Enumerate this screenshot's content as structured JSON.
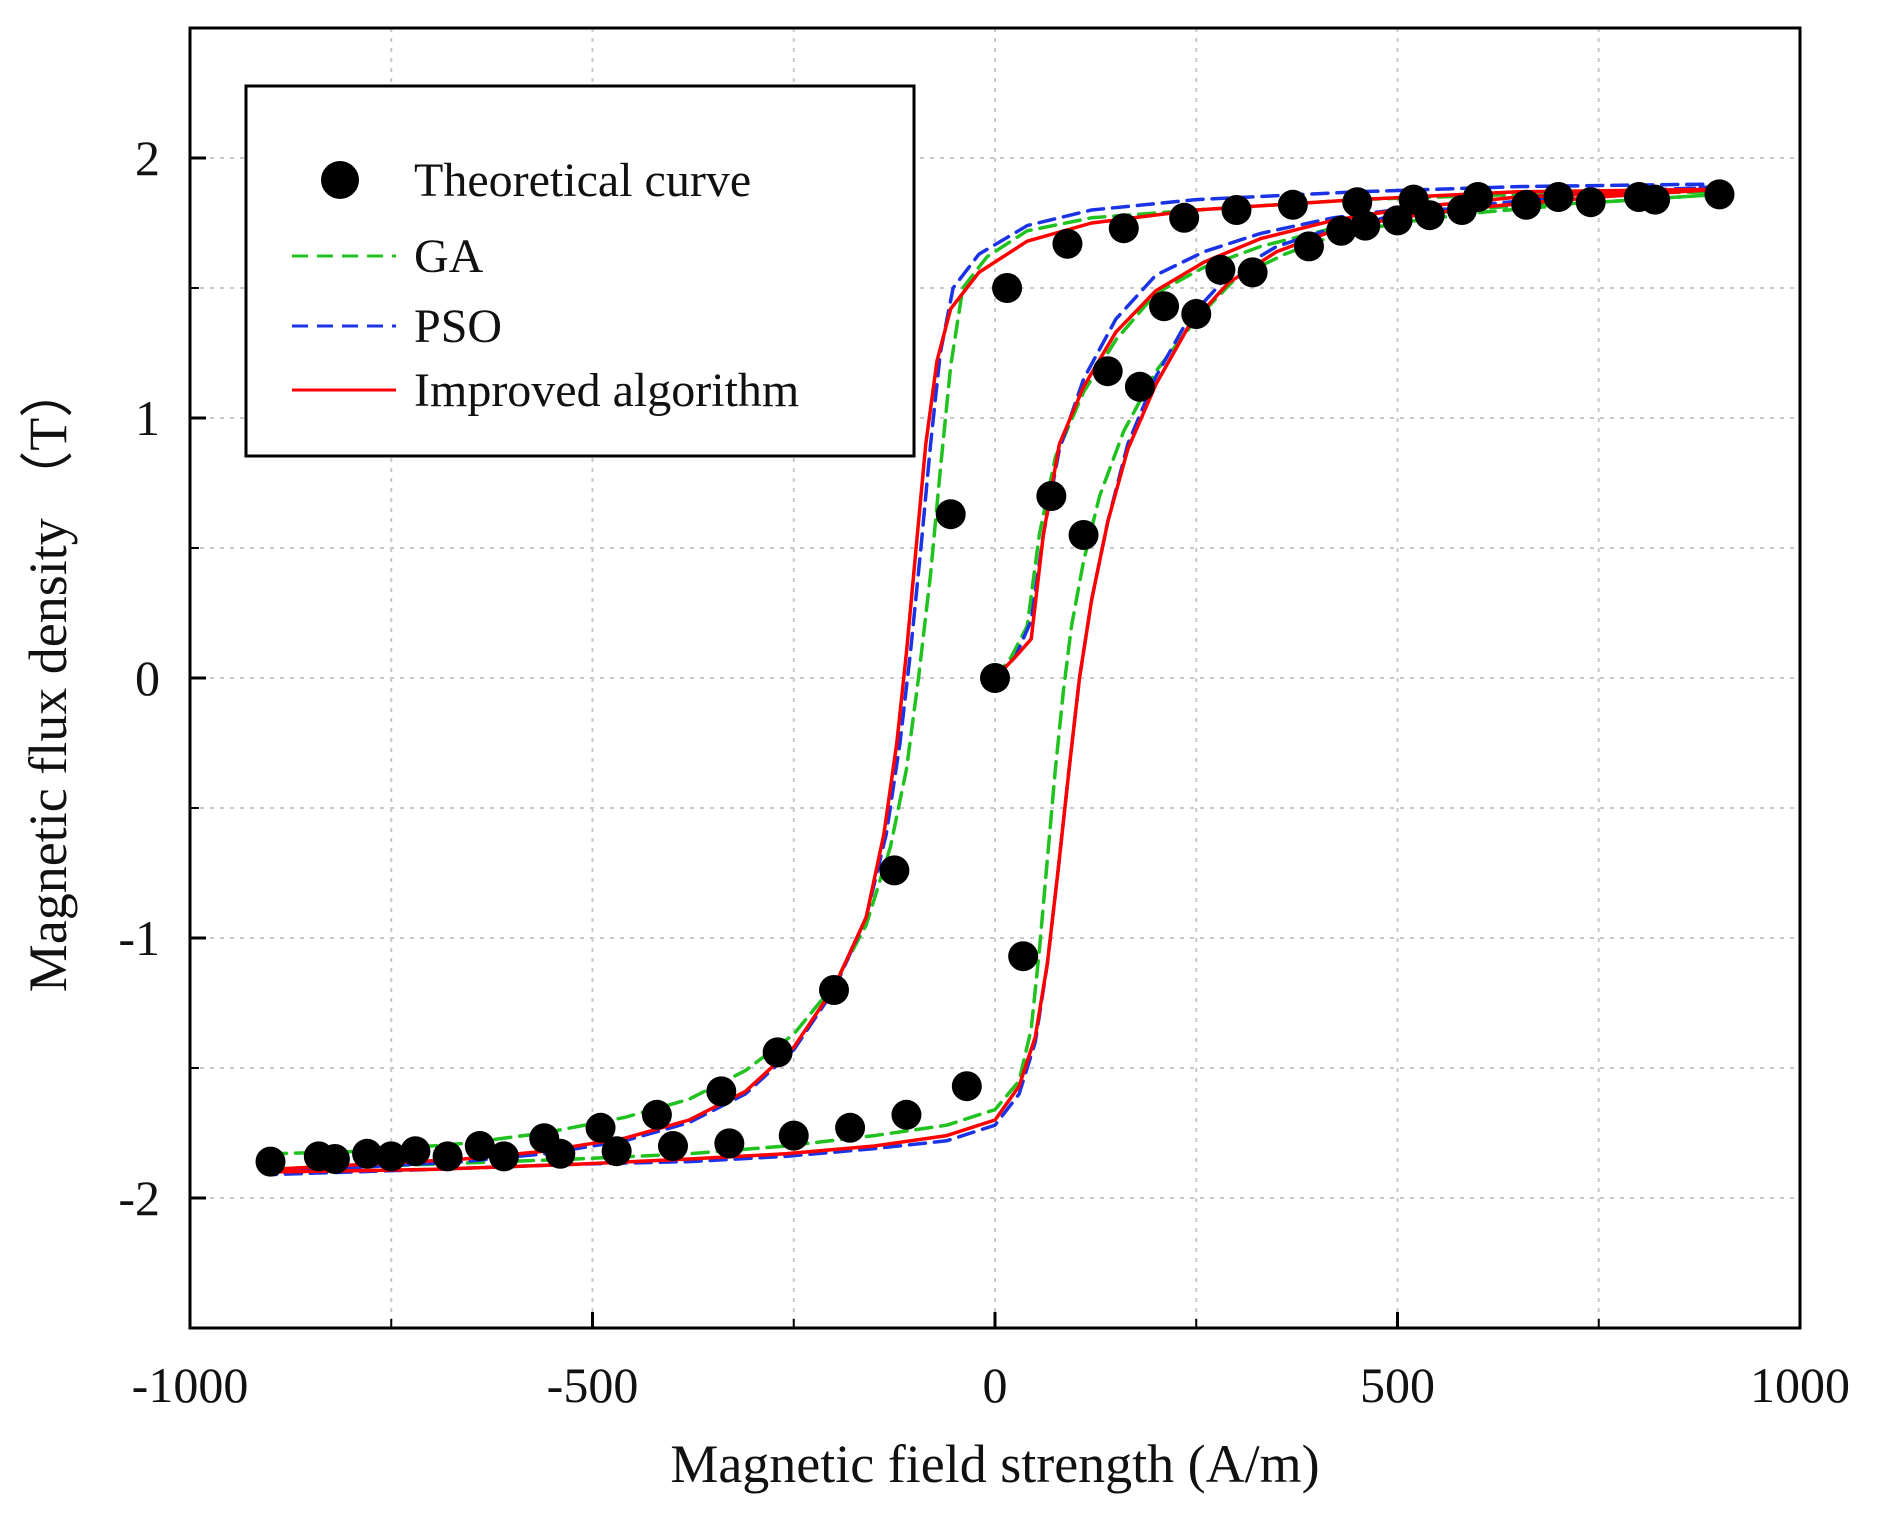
{
  "chart_data": {
    "type": "scatter",
    "title": "",
    "xlabel": "Magnetic field strength (A/m)",
    "ylabel": "Magnetic flux density （T）",
    "xlim": [
      -1000,
      1000
    ],
    "ylim": [
      -2.5,
      2.5
    ],
    "x_ticks": [
      -1000,
      -500,
      0,
      500,
      1000
    ],
    "x_tick_labels": [
      "-1000",
      "-500",
      "0",
      "500",
      "1000"
    ],
    "x_minor_ticks": [
      -750,
      -250,
      250,
      750
    ],
    "y_ticks": [
      -2,
      -1,
      0,
      1,
      2
    ],
    "y_tick_labels": [
      "-2",
      "-1",
      "0",
      "1",
      "2"
    ],
    "y_minor_ticks": [
      -1.5,
      -0.5,
      0.5,
      1.5
    ],
    "grid": true,
    "legend_position": "top-left",
    "colors": {
      "theoretical": "#000000",
      "ga": "#1fc21f",
      "pso": "#1a33e6",
      "improved": "#ff0000",
      "grid": "#c8c8c8"
    },
    "legend": [
      "Theoretical curve",
      "GA",
      "PSO",
      "Improved algorithm"
    ],
    "series": [
      {
        "name": "Theoretical curve",
        "style": "markers",
        "points": [
          [
            0,
            0
          ],
          [
            70,
            0.7
          ],
          [
            140,
            1.18
          ],
          [
            210,
            1.43
          ],
          [
            280,
            1.57
          ],
          [
            300,
            1.8
          ],
          [
            370,
            1.82
          ],
          [
            450,
            1.83
          ],
          [
            520,
            1.84
          ],
          [
            600,
            1.85
          ],
          [
            700,
            1.85
          ],
          [
            800,
            1.85
          ],
          [
            900,
            1.86
          ],
          [
            820,
            1.84
          ],
          [
            740,
            1.83
          ],
          [
            660,
            1.82
          ],
          [
            580,
            1.8
          ],
          [
            540,
            1.78
          ],
          [
            500,
            1.76
          ],
          [
            460,
            1.74
          ],
          [
            430,
            1.72
          ],
          [
            390,
            1.66
          ],
          [
            320,
            1.56
          ],
          [
            250,
            1.4
          ],
          [
            180,
            1.12
          ],
          [
            110,
            0.55
          ],
          [
            35,
            -1.07
          ],
          [
            -35,
            -1.57
          ],
          [
            -110,
            -1.68
          ],
          [
            -180,
            -1.73
          ],
          [
            -250,
            -1.76
          ],
          [
            -330,
            -1.79
          ],
          [
            -400,
            -1.8
          ],
          [
            -470,
            -1.82
          ],
          [
            -540,
            -1.83
          ],
          [
            -610,
            -1.84
          ],
          [
            -680,
            -1.84
          ],
          [
            -750,
            -1.84
          ],
          [
            -820,
            -1.85
          ],
          [
            -900,
            -1.86
          ],
          [
            -840,
            -1.84
          ],
          [
            -780,
            -1.83
          ],
          [
            -720,
            -1.82
          ],
          [
            -640,
            -1.8
          ],
          [
            -560,
            -1.77
          ],
          [
            -490,
            -1.73
          ],
          [
            -420,
            -1.68
          ],
          [
            -340,
            -1.59
          ],
          [
            -270,
            -1.44
          ],
          [
            -200,
            -1.2
          ],
          [
            -125,
            -0.74
          ],
          [
            -55,
            0.63
          ],
          [
            15,
            1.5
          ],
          [
            90,
            1.67
          ],
          [
            160,
            1.73
          ],
          [
            235,
            1.77
          ]
        ]
      },
      {
        "name": "GA",
        "style": "dashed",
        "segments": [
          [
            [
              0,
              0
            ],
            [
              20,
              0.08
            ],
            [
              40,
              0.2
            ],
            [
              55,
              0.55
            ],
            [
              75,
              0.85
            ],
            [
              110,
              1.1
            ],
            [
              150,
              1.3
            ],
            [
              200,
              1.48
            ],
            [
              260,
              1.58
            ],
            [
              330,
              1.66
            ],
            [
              420,
              1.73
            ],
            [
              520,
              1.78
            ],
            [
              620,
              1.81
            ],
            [
              750,
              1.83
            ],
            [
              900,
              1.86
            ]
          ],
          [
            [
              900,
              1.86
            ],
            [
              750,
              1.83
            ],
            [
              600,
              1.79
            ],
            [
              500,
              1.75
            ],
            [
              420,
              1.7
            ],
            [
              360,
              1.63
            ],
            [
              300,
              1.54
            ],
            [
              250,
              1.38
            ],
            [
              200,
              1.18
            ],
            [
              160,
              0.95
            ],
            [
              130,
              0.7
            ],
            [
              110,
              0.45
            ],
            [
              95,
              0.2
            ],
            [
              85,
              -0.05
            ],
            [
              75,
              -0.35
            ],
            [
              65,
              -0.7
            ],
            [
              55,
              -1.05
            ],
            [
              45,
              -1.35
            ],
            [
              30,
              -1.55
            ],
            [
              0,
              -1.66
            ],
            [
              -60,
              -1.72
            ],
            [
              -150,
              -1.76
            ],
            [
              -260,
              -1.8
            ],
            [
              -380,
              -1.83
            ],
            [
              -520,
              -1.85
            ],
            [
              -700,
              -1.87
            ],
            [
              -900,
              -1.89
            ]
          ],
          [
            [
              -900,
              -1.83
            ],
            [
              -780,
              -1.82
            ],
            [
              -660,
              -1.79
            ],
            [
              -560,
              -1.75
            ],
            [
              -460,
              -1.69
            ],
            [
              -380,
              -1.62
            ],
            [
              -310,
              -1.51
            ],
            [
              -250,
              -1.37
            ],
            [
              -200,
              -1.18
            ],
            [
              -160,
              -0.95
            ],
            [
              -130,
              -0.65
            ],
            [
              -110,
              -0.35
            ],
            [
              -95,
              0
            ],
            [
              -80,
              0.4
            ],
            [
              -68,
              0.8
            ],
            [
              -55,
              1.2
            ],
            [
              -40,
              1.5
            ],
            [
              -10,
              1.62
            ],
            [
              40,
              1.72
            ],
            [
              120,
              1.77
            ],
            [
              250,
              1.8
            ],
            [
              450,
              1.84
            ],
            [
              650,
              1.86
            ],
            [
              900,
              1.87
            ]
          ]
        ]
      },
      {
        "name": "PSO",
        "style": "dashed",
        "segments": [
          [
            [
              0,
              0
            ],
            [
              25,
              0.08
            ],
            [
              45,
              0.22
            ],
            [
              60,
              0.55
            ],
            [
              80,
              0.88
            ],
            [
              110,
              1.15
            ],
            [
              150,
              1.38
            ],
            [
              200,
              1.55
            ],
            [
              260,
              1.64
            ],
            [
              330,
              1.71
            ],
            [
              420,
              1.77
            ],
            [
              520,
              1.81
            ],
            [
              650,
              1.85
            ],
            [
              900,
              1.89
            ]
          ],
          [
            [
              900,
              1.89
            ],
            [
              750,
              1.86
            ],
            [
              600,
              1.82
            ],
            [
              500,
              1.78
            ],
            [
              420,
              1.73
            ],
            [
              350,
              1.66
            ],
            [
              290,
              1.55
            ],
            [
              240,
              1.38
            ],
            [
              200,
              1.16
            ],
            [
              165,
              0.9
            ],
            [
              140,
              0.6
            ],
            [
              120,
              0.3
            ],
            [
              105,
              0
            ],
            [
              92,
              -0.35
            ],
            [
              78,
              -0.75
            ],
            [
              65,
              -1.1
            ],
            [
              50,
              -1.4
            ],
            [
              30,
              -1.6
            ],
            [
              0,
              -1.72
            ],
            [
              -60,
              -1.78
            ],
            [
              -150,
              -1.81
            ],
            [
              -260,
              -1.84
            ],
            [
              -380,
              -1.86
            ],
            [
              -520,
              -1.87
            ],
            [
              -700,
              -1.89
            ],
            [
              -900,
              -1.91
            ]
          ],
          [
            [
              -900,
              -1.9
            ],
            [
              -780,
              -1.88
            ],
            [
              -660,
              -1.86
            ],
            [
              -560,
              -1.83
            ],
            [
              -460,
              -1.78
            ],
            [
              -380,
              -1.71
            ],
            [
              -310,
              -1.6
            ],
            [
              -250,
              -1.43
            ],
            [
              -200,
              -1.2
            ],
            [
              -160,
              -0.92
            ],
            [
              -135,
              -0.6
            ],
            [
              -118,
              -0.25
            ],
            [
              -105,
              0.1
            ],
            [
              -92,
              0.5
            ],
            [
              -80,
              0.9
            ],
            [
              -68,
              1.25
            ],
            [
              -52,
              1.5
            ],
            [
              -20,
              1.63
            ],
            [
              40,
              1.74
            ],
            [
              120,
              1.8
            ],
            [
              250,
              1.84
            ],
            [
              450,
              1.87
            ],
            [
              650,
              1.89
            ],
            [
              900,
              1.9
            ]
          ]
        ]
      },
      {
        "name": "Improved algorithm",
        "style": "solid",
        "segments": [
          [
            [
              0,
              0
            ],
            [
              25,
              0.08
            ],
            [
              45,
              0.15
            ],
            [
              60,
              0.55
            ],
            [
              80,
              0.9
            ],
            [
              110,
              1.12
            ],
            [
              150,
              1.33
            ],
            [
              200,
              1.49
            ],
            [
              260,
              1.6
            ],
            [
              330,
              1.69
            ],
            [
              420,
              1.76
            ],
            [
              520,
              1.81
            ],
            [
              650,
              1.85
            ],
            [
              900,
              1.88
            ]
          ],
          [
            [
              900,
              1.88
            ],
            [
              750,
              1.85
            ],
            [
              600,
              1.81
            ],
            [
              500,
              1.77
            ],
            [
              420,
              1.72
            ],
            [
              350,
              1.64
            ],
            [
              290,
              1.52
            ],
            [
              240,
              1.35
            ],
            [
              200,
              1.13
            ],
            [
              165,
              0.88
            ],
            [
              140,
              0.6
            ],
            [
              120,
              0.3
            ],
            [
              105,
              0
            ],
            [
              92,
              -0.35
            ],
            [
              78,
              -0.75
            ],
            [
              65,
              -1.1
            ],
            [
              50,
              -1.38
            ],
            [
              30,
              -1.57
            ],
            [
              0,
              -1.7
            ],
            [
              -60,
              -1.76
            ],
            [
              -150,
              -1.8
            ],
            [
              -260,
              -1.83
            ],
            [
              -380,
              -1.85
            ],
            [
              -520,
              -1.87
            ],
            [
              -700,
              -1.89
            ],
            [
              -900,
              -1.9
            ]
          ],
          [
            [
              -900,
              -1.89
            ],
            [
              -780,
              -1.87
            ],
            [
              -660,
              -1.85
            ],
            [
              -560,
              -1.82
            ],
            [
              -460,
              -1.77
            ],
            [
              -380,
              -1.7
            ],
            [
              -310,
              -1.59
            ],
            [
              -250,
              -1.42
            ],
            [
              -200,
              -1.19
            ],
            [
              -160,
              -0.92
            ],
            [
              -138,
              -0.6
            ],
            [
              -122,
              -0.25
            ],
            [
              -110,
              0.1
            ],
            [
              -98,
              0.5
            ],
            [
              -86,
              0.9
            ],
            [
              -72,
              1.22
            ],
            [
              -55,
              1.42
            ],
            [
              -20,
              1.56
            ],
            [
              40,
              1.68
            ],
            [
              120,
              1.75
            ],
            [
              250,
              1.8
            ],
            [
              450,
              1.84
            ],
            [
              650,
              1.87
            ],
            [
              900,
              1.88
            ]
          ]
        ]
      }
    ]
  }
}
